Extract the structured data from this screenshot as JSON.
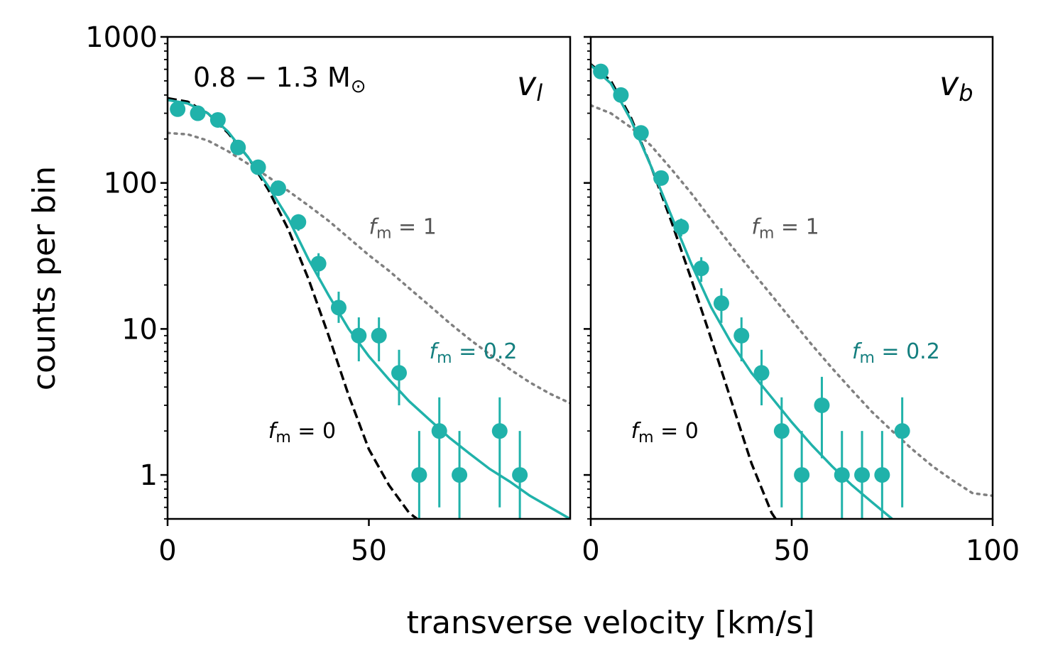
{
  "figure": {
    "ylabel": "counts per bin",
    "xlabel": "transverse velocity [km/s]",
    "mass_label": {
      "main": "0.8 − 1.3 M",
      "sub": "⊙"
    }
  },
  "chart_data": [
    {
      "type": "scatter",
      "panel": "left",
      "panel_label": {
        "main": "v",
        "sub": "l"
      },
      "xlim": [
        0,
        100
      ],
      "ylim": [
        0.5,
        1000
      ],
      "y_scale": "log",
      "x_ticks": [
        0,
        50
      ],
      "x_tick_labels": [
        "0",
        "50"
      ],
      "y_ticks": [
        1,
        10,
        100,
        1000
      ],
      "y_tick_labels": [
        "1",
        "10",
        "100",
        "1000"
      ],
      "points": {
        "name": "data",
        "color": "#20b2aa",
        "x": [
          2.5,
          7.5,
          12.5,
          17.5,
          22.5,
          27.5,
          32.5,
          37.5,
          42.5,
          47.5,
          52.5,
          57.5,
          62.5,
          67.5,
          72.5,
          82.5,
          87.5
        ],
        "y": [
          320,
          300,
          270,
          175,
          128,
          92,
          54,
          28,
          14,
          9,
          9,
          5,
          1,
          2,
          1,
          2,
          1
        ],
        "yerr_low": [
          300,
          283,
          254,
          162,
          117,
          82,
          47,
          23,
          11,
          6,
          6,
          3,
          0.5,
          0.6,
          0.5,
          0.6,
          0.5
        ],
        "yerr_high": [
          338,
          317,
          286,
          188,
          139,
          102,
          61,
          33,
          18,
          12,
          12,
          7.2,
          2,
          3.4,
          2,
          3.4,
          2
        ]
      },
      "curves": [
        {
          "name": "f_m = 0",
          "style": "dashed",
          "color": "#000000",
          "x": [
            0,
            5,
            10,
            15,
            20,
            25,
            30,
            35,
            40,
            45,
            50,
            55,
            60,
            62
          ],
          "y": [
            380,
            360,
            300,
            220,
            150,
            90,
            48,
            22,
            9,
            3.5,
            1.5,
            0.85,
            0.55,
            0.5
          ]
        },
        {
          "name": "f_m = 0.2",
          "style": "solid",
          "color": "#20b2aa",
          "x": [
            0,
            5,
            10,
            15,
            20,
            25,
            30,
            35,
            40,
            45,
            50,
            55,
            60,
            65,
            70,
            75,
            80,
            85,
            90,
            95,
            100
          ],
          "y": [
            370,
            350,
            300,
            225,
            150,
            95,
            57,
            30,
            17,
            10,
            6.5,
            4.5,
            3.2,
            2.4,
            1.8,
            1.4,
            1.1,
            0.9,
            0.72,
            0.6,
            0.5
          ]
        },
        {
          "name": "f_m = 1",
          "style": "dotted",
          "color": "#808080",
          "x": [
            0,
            5,
            10,
            15,
            20,
            25,
            30,
            35,
            40,
            45,
            50,
            55,
            60,
            65,
            70,
            75,
            80,
            85,
            90,
            95,
            100
          ],
          "y": [
            220,
            215,
            195,
            165,
            135,
            110,
            88,
            70,
            55,
            42,
            32,
            25,
            19,
            14.5,
            11,
            8.5,
            6.7,
            5.3,
            4.3,
            3.6,
            3.1
          ]
        }
      ],
      "annotations": [
        {
          "name": "f_m = 1",
          "main": "f",
          "sub": "m",
          "rest": " = 1",
          "x": 50,
          "y": 50,
          "color": "#555555"
        },
        {
          "name": "f_m = 0.2",
          "main": "f",
          "sub": "m",
          "rest": " = 0.2",
          "x": 65,
          "y": 7,
          "color": "#147f7f"
        },
        {
          "name": "f_m = 0",
          "main": "f",
          "sub": "m",
          "rest": " = 0",
          "x": 25,
          "y": 2,
          "color": "#000000"
        }
      ]
    },
    {
      "type": "scatter",
      "panel": "right",
      "panel_label": {
        "main": "v",
        "sub": "b"
      },
      "xlim": [
        0,
        100
      ],
      "ylim": [
        0.5,
        1000
      ],
      "y_scale": "log",
      "x_ticks": [
        0,
        50,
        100
      ],
      "x_tick_labels": [
        "0",
        "50",
        "100"
      ],
      "y_ticks": [
        1,
        10,
        100,
        1000
      ],
      "y_tick_labels": [],
      "points": {
        "name": "data",
        "color": "#20b2aa",
        "x": [
          2.5,
          7.5,
          12.5,
          17.5,
          22.5,
          27.5,
          32.5,
          37.5,
          42.5,
          47.5,
          52.5,
          57.5,
          62.5,
          67.5,
          72.5,
          77.5
        ],
        "y": [
          580,
          400,
          220,
          108,
          50,
          26,
          15,
          9,
          5,
          2,
          1,
          3,
          1,
          1,
          1,
          2
        ],
        "yerr_low": [
          556,
          380,
          205,
          98,
          43,
          21,
          11,
          6,
          3,
          0.6,
          0.5,
          1.3,
          0.5,
          0.5,
          0.5,
          0.6
        ],
        "yerr_high": [
          604,
          420,
          235,
          118,
          57,
          31,
          19,
          12,
          7.2,
          3.4,
          2,
          4.7,
          2,
          2,
          2,
          3.4
        ]
      },
      "curves": [
        {
          "name": "f_m = 0",
          "style": "dashed",
          "color": "#000000",
          "x": [
            0,
            5,
            10,
            15,
            20,
            25,
            30,
            35,
            40,
            45,
            46
          ],
          "y": [
            650,
            500,
            280,
            130,
            55,
            22,
            8.5,
            3.2,
            1.2,
            0.55,
            0.5
          ]
        },
        {
          "name": "f_m = 0.2",
          "style": "solid",
          "color": "#20b2aa",
          "x": [
            0,
            5,
            10,
            15,
            20,
            25,
            30,
            35,
            40,
            45,
            50,
            55,
            60,
            65,
            70,
            75
          ],
          "y": [
            640,
            480,
            270,
            130,
            60,
            28,
            14,
            8,
            5,
            3.4,
            2.3,
            1.6,
            1.15,
            0.85,
            0.65,
            0.5
          ]
        },
        {
          "name": "f_m = 1",
          "style": "dotted",
          "color": "#808080",
          "x": [
            0,
            5,
            10,
            15,
            20,
            25,
            30,
            35,
            40,
            45,
            50,
            55,
            60,
            65,
            70,
            75,
            80,
            85,
            90,
            95,
            100
          ],
          "y": [
            340,
            300,
            240,
            180,
            125,
            85,
            56,
            37,
            25,
            17,
            11.5,
            7.8,
            5.4,
            3.8,
            2.7,
            2,
            1.5,
            1.15,
            0.92,
            0.75,
            0.72
          ]
        }
      ],
      "annotations": [
        {
          "name": "f_m = 1",
          "main": "f",
          "sub": "m",
          "rest": " = 1",
          "x": 40,
          "y": 50,
          "color": "#555555"
        },
        {
          "name": "f_m = 0.2",
          "main": "f",
          "sub": "m",
          "rest": " = 0.2",
          "x": 65,
          "y": 7,
          "color": "#147f7f"
        },
        {
          "name": "f_m = 0",
          "main": "f",
          "sub": "m",
          "rest": " = 0",
          "x": 10,
          "y": 2,
          "color": "#000000"
        }
      ]
    }
  ]
}
